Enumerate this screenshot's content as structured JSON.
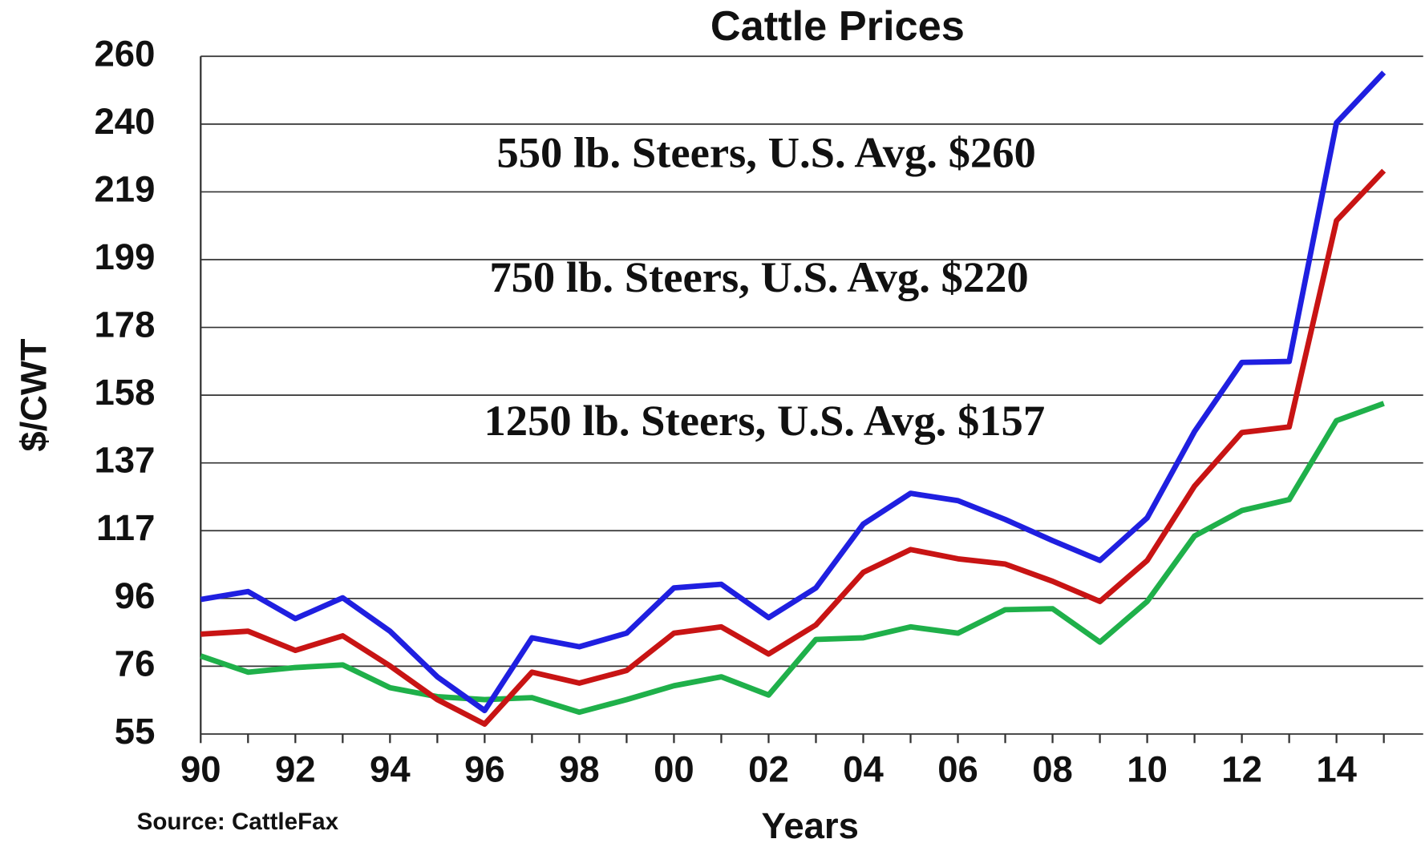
{
  "chart_data": {
    "type": "line",
    "title": "Cattle Prices",
    "x_label": "Years",
    "y_label": "$/CWT",
    "source": "Source: CattleFax",
    "annotations": [
      "550 lb. Steers, U.S. Avg. $260",
      "750 lb. Steers, U.S. Avg. $220",
      "1250 lb. Steers, U.S. Avg. $157"
    ],
    "categories": [
      "90",
      null,
      "92",
      null,
      "94",
      null,
      "96",
      null,
      "98",
      null,
      "00",
      null,
      "02",
      null,
      "04",
      null,
      "06",
      null,
      "08",
      null,
      "10",
      null,
      "12",
      null,
      "14",
      null
    ],
    "series": [
      {
        "color": "#1f1fe0",
        "values": [
          95.7,
          98.1,
          89.9,
          96.2,
          86.1,
          72.3,
          62.1,
          84.1,
          81.4,
          85.5,
          99.2,
          100.3,
          90.2,
          99.2,
          118.5,
          127.8,
          125.6,
          119.9,
          113.5,
          107.5,
          120.4,
          146.5,
          167.4,
          167.7,
          239.9,
          255.1
        ]
      },
      {
        "color": "#c81414",
        "values": [
          85.2,
          86.1,
          80.3,
          84.7,
          75.6,
          65.4,
          58.0,
          73.7,
          70.4,
          74.2,
          85.5,
          87.4,
          79.2,
          88.0,
          103.9,
          110.8,
          108.0,
          106.4,
          101.2,
          95.1,
          107.5,
          130.0,
          146.2,
          147.9,
          210.3,
          225.4
        ]
      },
      {
        "color": "#1fb04a",
        "values": [
          78.6,
          73.7,
          75.1,
          75.9,
          69.0,
          66.3,
          65.4,
          66.0,
          61.6,
          65.4,
          69.6,
          72.3,
          66.8,
          83.6,
          84.1,
          87.4,
          85.5,
          92.6,
          92.9,
          82.8,
          95.1,
          114.9,
          122.6,
          125.9,
          149.8,
          155.0
        ]
      }
    ],
    "ylim": [
      55,
      260
    ],
    "yticks": [
      55,
      {
        "value": 75.5,
        "label": "76"
      },
      96,
      {
        "value": 116.5,
        "label": "117"
      },
      137,
      {
        "value": 157.5,
        "label": "158"
      },
      178,
      {
        "value": 198.5,
        "label": "199"
      },
      219,
      {
        "value": 239.5,
        "label": "240"
      },
      260
    ],
    "grid": true
  }
}
